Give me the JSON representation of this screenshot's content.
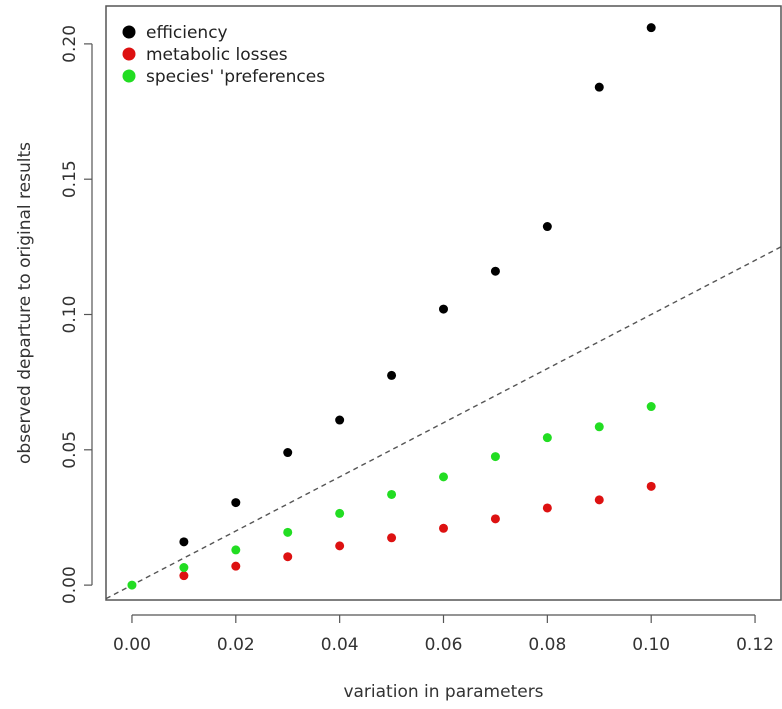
{
  "chart_data": {
    "type": "scatter",
    "xlabel": "variation in parameters",
    "ylabel": "observed departure to original results",
    "xlim": [
      -0.005,
      0.125
    ],
    "ylim": [
      -0.0055,
      0.214
    ],
    "xticks": [
      "0.00",
      "0.02",
      "0.04",
      "0.06",
      "0.08",
      "0.10",
      "0.12"
    ],
    "yticks": [
      "0.00",
      "0.05",
      "0.10",
      "0.15",
      "0.20"
    ],
    "grid": false,
    "legend_position": "top-left",
    "reference_line": {
      "style": "dashed",
      "intercept": 0,
      "slope": 1,
      "color": "#555555"
    },
    "series": [
      {
        "name": "efficiency",
        "color": "#000000",
        "x": [
          0.01,
          0.02,
          0.03,
          0.04,
          0.05,
          0.06,
          0.07,
          0.08,
          0.09,
          0.1
        ],
        "y": [
          0.016,
          0.0305,
          0.049,
          0.061,
          0.0775,
          0.102,
          0.116,
          0.1325,
          0.184,
          0.206
        ]
      },
      {
        "name": "metabolic losses",
        "color": "#dd1111",
        "x": [
          0.01,
          0.02,
          0.03,
          0.04,
          0.05,
          0.06,
          0.07,
          0.08,
          0.09,
          0.1
        ],
        "y": [
          0.0035,
          0.007,
          0.0105,
          0.0145,
          0.0175,
          0.021,
          0.0245,
          0.0285,
          0.0315,
          0.0365
        ]
      },
      {
        "name": "species' 'preferences",
        "color": "#22dd22",
        "x": [
          0.0,
          0.01,
          0.02,
          0.03,
          0.04,
          0.05,
          0.06,
          0.07,
          0.08,
          0.09,
          0.1
        ],
        "y": [
          0.0,
          0.0065,
          0.013,
          0.0195,
          0.0265,
          0.0335,
          0.04,
          0.0475,
          0.0545,
          0.0585,
          0.066
        ]
      }
    ]
  }
}
